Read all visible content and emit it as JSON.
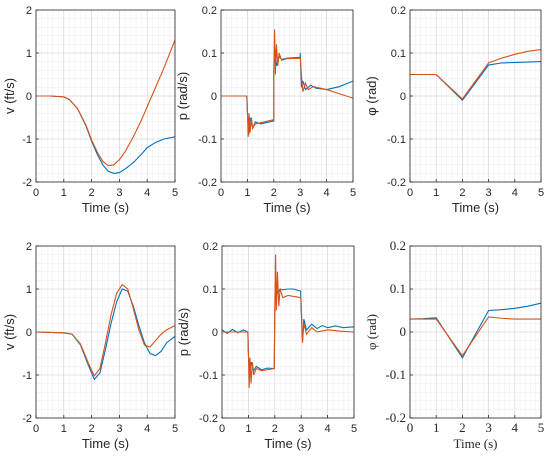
{
  "colors": {
    "series_a": "#0072BD",
    "series_b": "#D95319",
    "axis": "#262626",
    "grid": "#d0d0d0"
  },
  "chart_data": [
    {
      "type": "line",
      "xlabel": "Time (s)",
      "ylabel": "v (ft/s)",
      "xlim": [
        0,
        5
      ],
      "ylim": [
        -2,
        2
      ],
      "xticks": [
        "0",
        "1",
        "2",
        "3",
        "4",
        "5"
      ],
      "yticks": [
        "-2",
        "-1",
        "0",
        "1",
        "2"
      ],
      "grid": true,
      "series": [
        {
          "color": "#0072BD",
          "x": [
            0,
            0.5,
            1,
            1.2,
            1.5,
            1.8,
            2,
            2.2,
            2.4,
            2.6,
            2.8,
            3,
            3.2,
            3.5,
            3.8,
            4,
            4.3,
            4.6,
            5
          ],
          "y": [
            0,
            0,
            -0.02,
            -0.08,
            -0.3,
            -0.7,
            -1.05,
            -1.35,
            -1.6,
            -1.75,
            -1.8,
            -1.78,
            -1.7,
            -1.55,
            -1.35,
            -1.2,
            -1.08,
            -1.0,
            -0.95
          ]
        },
        {
          "color": "#D95319",
          "x": [
            0,
            0.5,
            1,
            1.2,
            1.5,
            1.8,
            2,
            2.2,
            2.4,
            2.6,
            2.8,
            3,
            3.2,
            3.5,
            3.8,
            4,
            4.3,
            4.6,
            5
          ],
          "y": [
            0,
            0,
            -0.02,
            -0.08,
            -0.3,
            -0.68,
            -1.02,
            -1.3,
            -1.52,
            -1.62,
            -1.6,
            -1.48,
            -1.3,
            -0.95,
            -0.55,
            -0.25,
            0.2,
            0.65,
            1.3
          ]
        }
      ]
    },
    {
      "type": "line",
      "xlabel": "Time (s)",
      "ylabel": "p (rad/s)",
      "xlim": [
        0,
        5
      ],
      "ylim": [
        -0.2,
        0.2
      ],
      "xticks": [
        "0",
        "1",
        "2",
        "3",
        "4",
        "5"
      ],
      "yticks": [
        "-0.2",
        "-0.1",
        "0",
        "0.1",
        "0.2"
      ],
      "grid": true,
      "series": [
        {
          "color": "#0072BD",
          "x": [
            0,
            0.98,
            1.0,
            1.05,
            1.1,
            1.2,
            1.3,
            1.5,
            2,
            2.0,
            2.05,
            2.1,
            2.2,
            2.3,
            2.5,
            3,
            3.0,
            3.05,
            3.1,
            3.2,
            3.4,
            3.6,
            4,
            4.5,
            5
          ],
          "y": [
            0,
            0,
            -0.04,
            -0.09,
            -0.05,
            -0.075,
            -0.06,
            -0.065,
            -0.058,
            0.06,
            0.11,
            0.07,
            0.092,
            0.085,
            0.088,
            0.09,
            0.1,
            0.02,
            0.035,
            0.015,
            0.025,
            0.018,
            0.015,
            0.022,
            0.035
          ]
        },
        {
          "color": "#D95319",
          "x": [
            0,
            0.98,
            1.0,
            1.03,
            1.06,
            1.1,
            1.15,
            1.2,
            1.3,
            1.5,
            2,
            2.0,
            2.03,
            2.06,
            2.1,
            2.15,
            2.2,
            2.3,
            2.5,
            3,
            3.0,
            3.05,
            3.1,
            3.2,
            3.3,
            3.5,
            4,
            4.5,
            5
          ],
          "y": [
            0,
            0,
            -0.03,
            -0.095,
            -0.04,
            -0.085,
            -0.05,
            -0.075,
            -0.065,
            -0.062,
            -0.055,
            0.06,
            0.155,
            0.05,
            0.12,
            0.07,
            0.1,
            0.083,
            0.087,
            0.088,
            0.09,
            0.045,
            0.01,
            0.03,
            0.015,
            0.022,
            0.015,
            0.005,
            -0.005
          ]
        }
      ]
    },
    {
      "type": "line",
      "xlabel": "Time (s)",
      "ylabel": "φ (rad)",
      "xlim": [
        0,
        5
      ],
      "ylim": [
        -0.2,
        0.2
      ],
      "xticks": [
        "0",
        "1",
        "2",
        "3",
        "4",
        "5"
      ],
      "yticks": [
        "-0.2",
        "-0.1",
        "0",
        "0.1",
        "0.2"
      ],
      "grid": true,
      "series": [
        {
          "color": "#0072BD",
          "x": [
            0,
            1,
            2,
            3,
            3.5,
            4,
            4.5,
            5
          ],
          "y": [
            0.05,
            0.05,
            -0.01,
            0.072,
            0.077,
            0.078,
            0.079,
            0.08
          ]
        },
        {
          "color": "#D95319",
          "x": [
            0,
            1,
            2,
            3,
            3.5,
            4,
            4.5,
            5
          ],
          "y": [
            0.05,
            0.05,
            -0.007,
            0.077,
            0.088,
            0.097,
            0.104,
            0.108
          ]
        }
      ]
    },
    {
      "type": "line",
      "xlabel": "Time (s)",
      "ylabel": "v (ft/s)",
      "xlim": [
        0,
        5
      ],
      "ylim": [
        -2,
        2
      ],
      "xticks": [
        "0",
        "1",
        "2",
        "3",
        "4",
        "5"
      ],
      "yticks": [
        "-2",
        "-1",
        "0",
        "1",
        "2"
      ],
      "grid": true,
      "series": [
        {
          "color": "#0072BD",
          "x": [
            0,
            1,
            1.3,
            1.6,
            1.9,
            2.1,
            2.3,
            2.5,
            2.7,
            2.9,
            3.1,
            3.3,
            3.5,
            3.7,
            3.9,
            4.1,
            4.3,
            4.5,
            4.7,
            5
          ],
          "y": [
            0,
            -0.02,
            -0.05,
            -0.3,
            -0.8,
            -1.1,
            -0.95,
            -0.4,
            0.2,
            0.7,
            1.0,
            0.95,
            0.6,
            0.15,
            -0.25,
            -0.5,
            -0.55,
            -0.45,
            -0.25,
            -0.1
          ]
        },
        {
          "color": "#D95319",
          "x": [
            0,
            1,
            1.3,
            1.6,
            1.9,
            2.1,
            2.3,
            2.5,
            2.7,
            2.9,
            3.1,
            3.3,
            3.5,
            3.7,
            3.9,
            4.1,
            4.3,
            4.5,
            4.7,
            5
          ],
          "y": [
            0,
            -0.02,
            -0.05,
            -0.28,
            -0.75,
            -1.02,
            -0.85,
            -0.25,
            0.4,
            0.9,
            1.1,
            1.0,
            0.55,
            0.05,
            -0.3,
            -0.35,
            -0.2,
            -0.05,
            0.05,
            0.15
          ]
        }
      ]
    },
    {
      "type": "line",
      "xlabel": "Time (s)",
      "ylabel": "p (rad/s)",
      "xlim": [
        0,
        5
      ],
      "ylim": [
        -0.2,
        0.2
      ],
      "xticks": [
        "0",
        "1",
        "2",
        "3",
        "4",
        "5"
      ],
      "yticks": [
        "-0.2",
        "-0.1",
        "0",
        "0.1",
        "0.2"
      ],
      "grid": true,
      "series": [
        {
          "color": "#0072BD",
          "x": [
            0,
            0.2,
            0.4,
            0.6,
            0.8,
            0.98,
            1.0,
            1.05,
            1.1,
            1.2,
            1.3,
            1.5,
            1.7,
            1.98,
            2.0,
            2.05,
            2.1,
            2.2,
            2.3,
            2.5,
            2.7,
            2.98,
            3.0,
            3.05,
            3.1,
            3.2,
            3.4,
            3.6,
            3.8,
            4,
            4.3,
            4.6,
            5
          ],
          "y": [
            0.005,
            -0.003,
            0.006,
            -0.002,
            0.005,
            0.0,
            -0.05,
            -0.1,
            -0.07,
            -0.09,
            -0.08,
            -0.088,
            -0.084,
            -0.085,
            0.05,
            0.11,
            0.09,
            0.1,
            0.098,
            0.1,
            0.1,
            0.095,
            0.05,
            -0.02,
            0.03,
            0.005,
            0.018,
            0.008,
            0.015,
            0.01,
            0.014,
            0.01,
            0.012
          ]
        },
        {
          "color": "#D95319",
          "x": [
            0,
            0.5,
            0.98,
            1.0,
            1.03,
            1.06,
            1.1,
            1.15,
            1.2,
            1.3,
            1.5,
            1.98,
            2.0,
            2.03,
            2.06,
            2.1,
            2.15,
            2.2,
            2.3,
            2.5,
            2.98,
            3.0,
            3.05,
            3.1,
            3.2,
            3.4,
            3.6,
            4,
            4.5,
            5
          ],
          "y": [
            0,
            0,
            0,
            -0.05,
            -0.13,
            -0.06,
            -0.12,
            -0.07,
            -0.1,
            -0.085,
            -0.09,
            -0.085,
            0.06,
            0.18,
            0.05,
            0.14,
            0.06,
            0.1,
            0.08,
            0.085,
            0.08,
            0.07,
            -0.025,
            0.02,
            -0.005,
            0.01,
            0.0,
            0.005,
            0.002,
            0.0
          ]
        }
      ]
    },
    {
      "type": "line",
      "xlabel": "Time (s)",
      "ylabel": "φ (rad)",
      "xlim": [
        0,
        5
      ],
      "ylim": [
        -0.2,
        0.2
      ],
      "xticks": [
        "0",
        "1",
        "2",
        "3",
        "4",
        "5"
      ],
      "yticks": [
        "-0.2",
        "-0.1",
        "0",
        "0.1",
        "0.2"
      ],
      "grid": true,
      "series": [
        {
          "color": "#0072BD",
          "x": [
            0,
            0.5,
            1,
            2,
            3,
            3.5,
            4,
            4.5,
            5
          ],
          "y": [
            0.03,
            0.031,
            0.033,
            -0.06,
            0.05,
            0.052,
            0.055,
            0.06,
            0.067
          ]
        },
        {
          "color": "#D95319",
          "x": [
            0,
            0.5,
            1,
            2,
            3,
            3.5,
            4,
            4.5,
            5
          ],
          "y": [
            0.03,
            0.03,
            0.03,
            -0.055,
            0.035,
            0.032,
            0.03,
            0.03,
            0.03
          ]
        }
      ]
    }
  ]
}
